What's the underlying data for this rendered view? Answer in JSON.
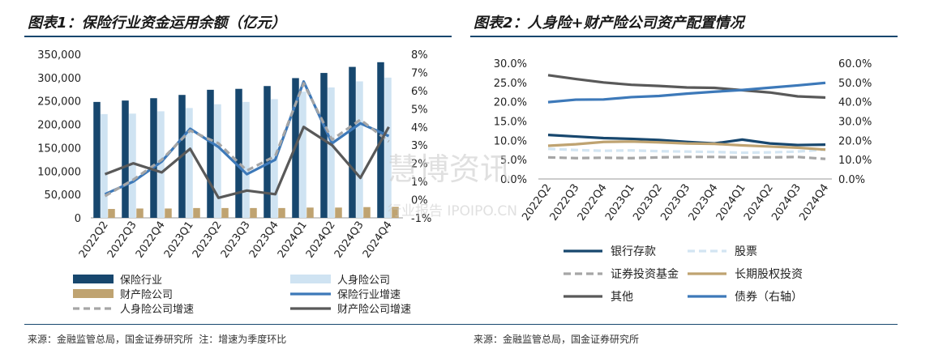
{
  "left": {
    "title": "图表1：保险行业资金运用余额（亿元）",
    "source": "来源：金融监管总局，国金证券研究所 注：增速为季度环比"
  },
  "right": {
    "title": "图表2：人身险+财产险公司资产配置情况",
    "source": "来源：金融监管总局，国金证券研究所"
  },
  "watermark": {
    "main": "慧博资讯",
    "sub": "行业报告 IPOIPO.CN"
  },
  "chart_data": [
    {
      "type": "bar",
      "categories": [
        "2022Q2",
        "2022Q3",
        "2022Q4",
        "2023Q1",
        "2023Q2",
        "2023Q3",
        "2023Q4",
        "2024Q1",
        "2024Q2",
        "2024Q3",
        "2024Q4"
      ],
      "ylim": [
        0,
        350000
      ],
      "yticks": [
        "350,000",
        "300,000",
        "250,000",
        "200,000",
        "150,000",
        "100,000",
        "50,000",
        "0"
      ],
      "y2lim": [
        -1,
        8
      ],
      "y2ticks": [
        "8%",
        "7%",
        "6%",
        "5%",
        "4%",
        "3%",
        "2%",
        "1%",
        "0%",
        "-1%"
      ],
      "series": [
        {
          "name": "保险行业",
          "type": "bar",
          "axis": "left",
          "color": "#17476e",
          "values": [
            248000,
            251000,
            256000,
            263000,
            274000,
            276000,
            282000,
            299000,
            310000,
            323000,
            333000
          ]
        },
        {
          "name": "人身险公司",
          "type": "bar",
          "axis": "left",
          "color": "#cfe3f2",
          "values": [
            222000,
            223000,
            228000,
            235000,
            243000,
            248000,
            254000,
            270000,
            279000,
            292000,
            300000
          ]
        },
        {
          "name": "财产险公司",
          "type": "bar",
          "axis": "left",
          "color": "#bfa371",
          "values": [
            19000,
            20000,
            20000,
            21000,
            21000,
            21000,
            21000,
            22000,
            22000,
            23000,
            23500
          ]
        },
        {
          "name": "保险行业增速",
          "type": "line",
          "axis": "right",
          "color": "#3d79b9",
          "dash": false,
          "values": [
            0.3,
            1.0,
            2.1,
            3.9,
            2.9,
            1.4,
            2.2,
            6.5,
            3.1,
            4.2,
            3.5
          ]
        },
        {
          "name": "人身险公司增速",
          "type": "line",
          "axis": "right",
          "color": "#a6a6a6",
          "dash": true,
          "values": [
            0.2,
            1.1,
            2.2,
            3.8,
            3.1,
            1.6,
            2.4,
            6.4,
            3.3,
            4.4,
            3.2
          ]
        },
        {
          "name": "财产险公司增速",
          "type": "line",
          "axis": "right",
          "color": "#595959",
          "dash": false,
          "values": [
            1.4,
            2.0,
            1.5,
            2.8,
            0.1,
            0.5,
            0.3,
            4.0,
            3.0,
            1.2,
            4.0
          ]
        }
      ],
      "legend": [
        "保险行业",
        "人身险公司",
        "财产险公司",
        "保险行业增速",
        "人身险公司增速",
        "财产险公司增速"
      ]
    },
    {
      "type": "line",
      "categories": [
        "2022Q2",
        "2022Q3",
        "2022Q4",
        "2023Q1",
        "2023Q2",
        "2023Q3",
        "2023Q4",
        "2024Q1",
        "2024Q2",
        "2024Q3",
        "2024Q4"
      ],
      "ylim": [
        0,
        30
      ],
      "yticks": [
        "30.0%",
        "25.0%",
        "20.0%",
        "15.0%",
        "10.0%",
        "5.0%",
        "0.0%"
      ],
      "y2lim": [
        0,
        60
      ],
      "y2ticks": [
        "60.0%",
        "50.0%",
        "40.0%",
        "30.0%",
        "20.0%",
        "10.0%",
        "0.0%"
      ],
      "series": [
        {
          "name": "银行存款",
          "axis": "left",
          "color": "#17476e",
          "dash": false,
          "values": [
            11.4,
            11.0,
            10.6,
            10.4,
            10.1,
            9.6,
            9.2,
            10.2,
            9.2,
            8.8,
            8.9
          ]
        },
        {
          "name": "股票",
          "axis": "left",
          "color": "#d3e5f2",
          "dash": true,
          "values": [
            7.8,
            7.5,
            7.3,
            7.4,
            7.2,
            7.1,
            7.0,
            6.8,
            6.9,
            7.1,
            7.6
          ]
        },
        {
          "name": "证券投资基金",
          "axis": "left",
          "color": "#a6a6a6",
          "dash": true,
          "values": [
            5.6,
            5.4,
            5.5,
            5.4,
            5.6,
            5.7,
            5.7,
            5.6,
            5.6,
            5.7,
            5.2
          ]
        },
        {
          "name": "长期股权投资",
          "axis": "left",
          "color": "#bfa371",
          "dash": false,
          "values": [
            8.6,
            9.0,
            9.6,
            9.7,
            9.5,
            9.2,
            9.1,
            8.7,
            8.4,
            8.1,
            7.6
          ]
        },
        {
          "name": "其他",
          "axis": "left",
          "color": "#595959",
          "dash": false,
          "values": [
            26.9,
            25.9,
            25.0,
            24.4,
            24.1,
            23.7,
            23.6,
            23.0,
            22.4,
            21.4,
            21.1
          ]
        },
        {
          "name": "债券（右轴）",
          "axis": "right",
          "color": "#3d79b9",
          "dash": false,
          "values": [
            39.8,
            41.1,
            41.2,
            42.4,
            43.0,
            44.2,
            45.2,
            46.1,
            47.3,
            48.5,
            49.8
          ]
        }
      ],
      "legend": [
        "银行存款",
        "股票",
        "证券投资基金",
        "长期股权投资",
        "其他",
        "债券（右轴）"
      ]
    }
  ]
}
